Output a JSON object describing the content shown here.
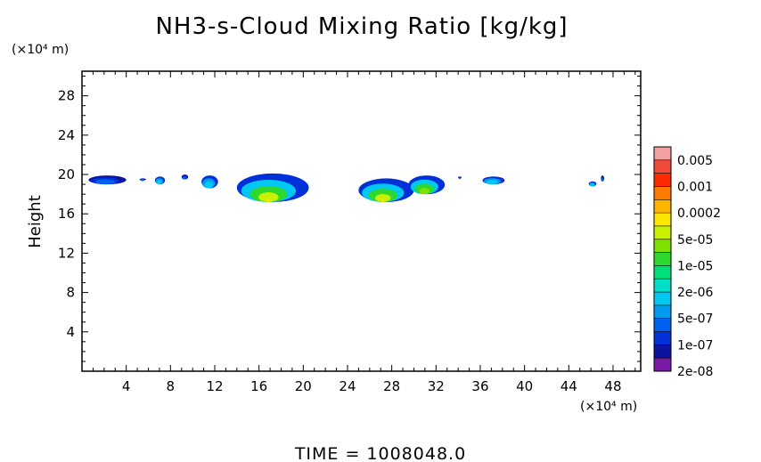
{
  "chart_data": {
    "type": "heatmap",
    "title": "NH3-s-Cloud Mixing Ratio [kg/kg]",
    "ylabel": "Height",
    "x_unit": "(×10⁴ m)",
    "y_unit": "(×10⁴ m)",
    "xlim": [
      0,
      50.5
    ],
    "ylim": [
      0,
      30.5
    ],
    "x_ticks": [
      4,
      8,
      12,
      16,
      20,
      24,
      28,
      32,
      36,
      40,
      44,
      48
    ],
    "y_ticks": [
      4,
      8,
      12,
      16,
      20,
      24,
      28
    ],
    "footer": "TIME = 1008048.0",
    "colorbar": {
      "labels": [
        "0.005",
        "0.001",
        "0.0002",
        "5e-05",
        "1e-05",
        "2e-06",
        "5e-07",
        "1e-07",
        "2e-08"
      ],
      "colors": [
        "#f5a0a0",
        "#f24a3a",
        "#ff2a00",
        "#ff7a00",
        "#ffb400",
        "#ffe600",
        "#c8f000",
        "#7ee000",
        "#2ed82e",
        "#00e07a",
        "#00e0c8",
        "#00c8f0",
        "#009af0",
        "#0060f0",
        "#0030d8",
        "#0a14a0",
        "#7a1aa8"
      ]
    },
    "cloud_patches": [
      {
        "x0": 0.6,
        "x1": 4.0,
        "y0": 19.0,
        "y1": 19.9,
        "level": "1e-07"
      },
      {
        "x0": 5.2,
        "x1": 5.8,
        "y0": 19.4,
        "y1": 19.6,
        "level": "1e-07"
      },
      {
        "x0": 6.6,
        "x1": 7.5,
        "y0": 19.0,
        "y1": 19.8,
        "level": "5e-07"
      },
      {
        "x0": 9.0,
        "x1": 9.6,
        "y0": 19.5,
        "y1": 20.0,
        "level": "1e-07"
      },
      {
        "x0": 10.8,
        "x1": 12.3,
        "y0": 18.6,
        "y1": 19.9,
        "level": "5e-07"
      },
      {
        "x0": 14.0,
        "x1": 20.5,
        "y0": 17.2,
        "y1": 20.1,
        "level": "5e-05"
      },
      {
        "x0": 25.0,
        "x1": 30.0,
        "y0": 17.2,
        "y1": 19.6,
        "level": "5e-05"
      },
      {
        "x0": 29.5,
        "x1": 32.8,
        "y0": 18.0,
        "y1": 19.9,
        "level": "1e-05"
      },
      {
        "x0": 34.0,
        "x1": 34.3,
        "y0": 19.6,
        "y1": 19.8,
        "level": "1e-07"
      },
      {
        "x0": 36.2,
        "x1": 38.2,
        "y0": 19.0,
        "y1": 19.8,
        "level": "5e-07"
      },
      {
        "x0": 45.8,
        "x1": 46.5,
        "y0": 18.8,
        "y1": 19.3,
        "level": "5e-07"
      },
      {
        "x0": 46.9,
        "x1": 47.2,
        "y0": 19.3,
        "y1": 19.9,
        "level": "1e-07"
      }
    ]
  }
}
